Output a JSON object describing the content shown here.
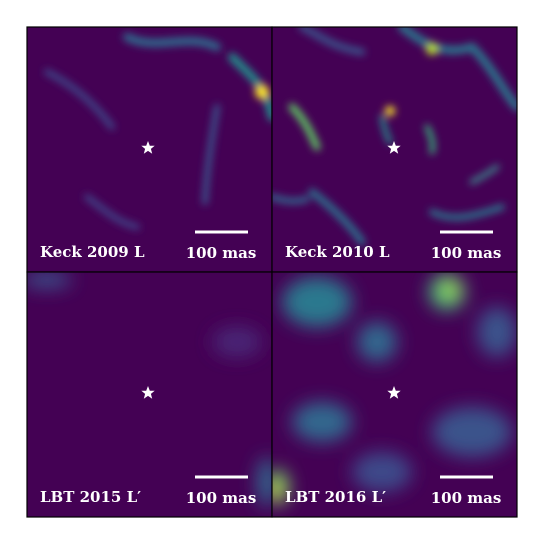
{
  "panels": [
    {
      "label": "Keck 2009 L",
      "scale": "100 mas"
    },
    {
      "label": "Keck 2010 L",
      "scale": "100 mas"
    },
    {
      "label": "LBT 2015 L′",
      "scale": "100 mas"
    },
    {
      "label": "LBT 2016 L′",
      "scale": "100 mas"
    }
  ]
}
